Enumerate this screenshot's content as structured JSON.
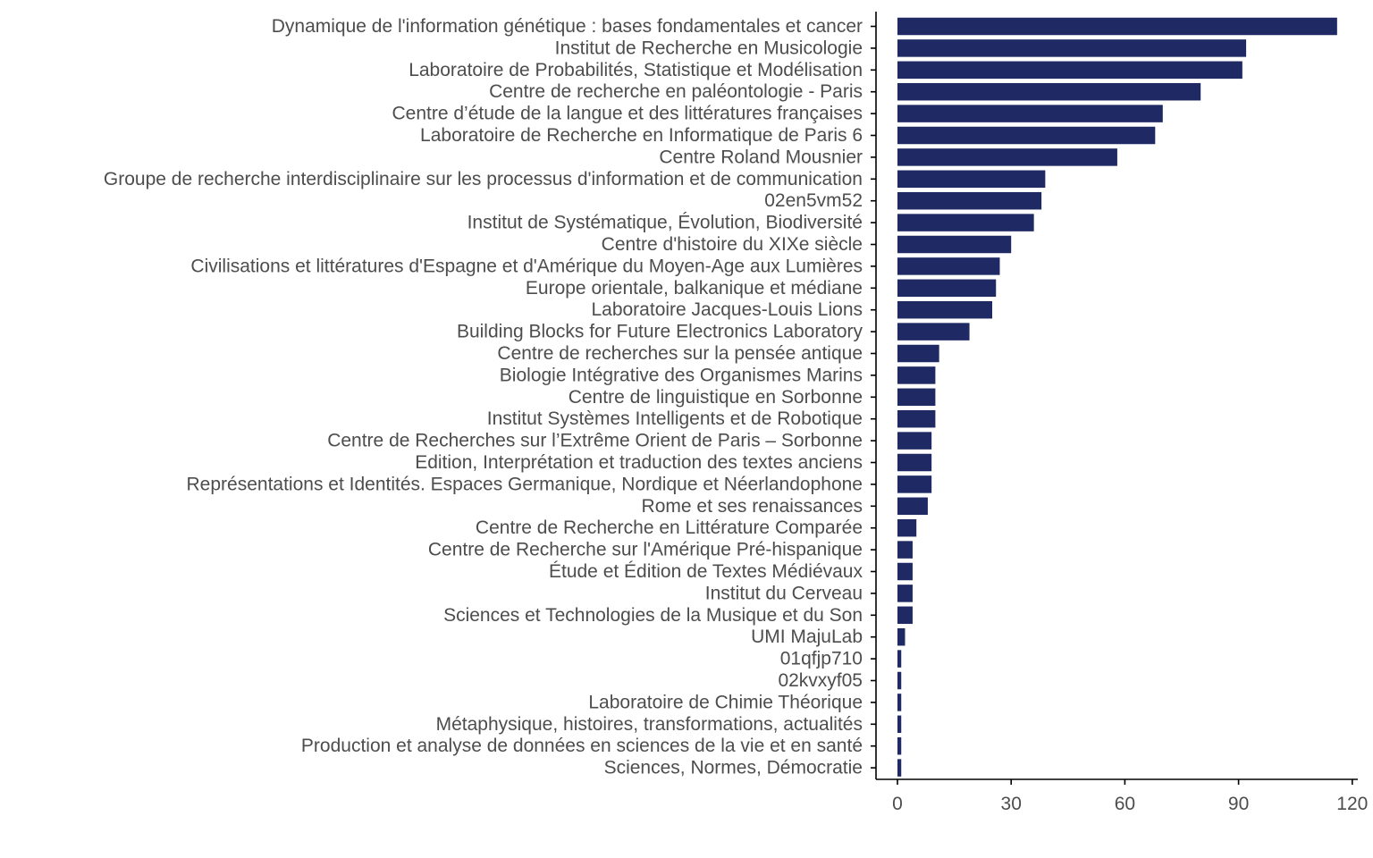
{
  "chart_data": {
    "type": "bar",
    "orientation": "horizontal",
    "bar_color": "#1f2a64",
    "title": "",
    "xlabel": "",
    "ylabel": "",
    "xlim": [
      0,
      120
    ],
    "x_ticks": [
      0,
      30,
      60,
      90,
      120
    ],
    "grid": false,
    "categories": [
      "Dynamique de l'information génétique : bases fondamentales et cancer",
      "Institut de Recherche en Musicologie",
      "Laboratoire de Probabilités, Statistique et Modélisation",
      "Centre de recherche en paléontologie - Paris",
      "Centre d’étude de la langue et des littératures françaises",
      "Laboratoire de Recherche en Informatique de Paris 6",
      "Centre Roland Mousnier",
      "Groupe de recherche interdisciplinaire sur les processus d'information et de communication",
      "02en5vm52",
      "Institut de Systématique, Évolution, Biodiversité",
      "Centre d'histoire du XIXe siècle",
      "Civilisations et littératures d'Espagne et d'Amérique du Moyen-Age aux Lumières",
      "Europe orientale, balkanique et médiane",
      "Laboratoire Jacques-Louis Lions",
      "Building Blocks for Future Electronics Laboratory",
      "Centre de recherches sur la pensée antique",
      "Biologie Intégrative des Organismes Marins",
      "Centre de linguistique en Sorbonne",
      "Institut Systèmes Intelligents et de Robotique",
      "Centre de Recherches sur l’Extrême Orient de Paris – Sorbonne",
      "Edition, Interprétation et traduction des textes anciens",
      "Représentations et Identités. Espaces Germanique, Nordique et Néerlandophone",
      "Rome et ses renaissances",
      "Centre de Recherche en Littérature Comparée",
      "Centre de Recherche sur l'Amérique Pré-hispanique",
      "Étude et Édition de Textes Médiévaux",
      "Institut du Cerveau",
      "Sciences et Technologies de la Musique et du Son",
      "UMI MajuLab",
      "01qfjp710",
      "02kvxyf05",
      "Laboratoire de Chimie Théorique",
      "Métaphysique, histoires, transformations, actualités",
      "Production et analyse de données en sciences de la vie et en santé",
      "Sciences, Normes, Démocratie"
    ],
    "values": [
      116,
      92,
      91,
      80,
      70,
      68,
      58,
      39,
      38,
      36,
      30,
      27,
      26,
      25,
      19,
      11,
      10,
      10,
      10,
      9,
      9,
      9,
      8,
      5,
      4,
      4,
      4,
      4,
      2,
      1,
      1,
      1,
      1,
      1,
      1
    ]
  }
}
